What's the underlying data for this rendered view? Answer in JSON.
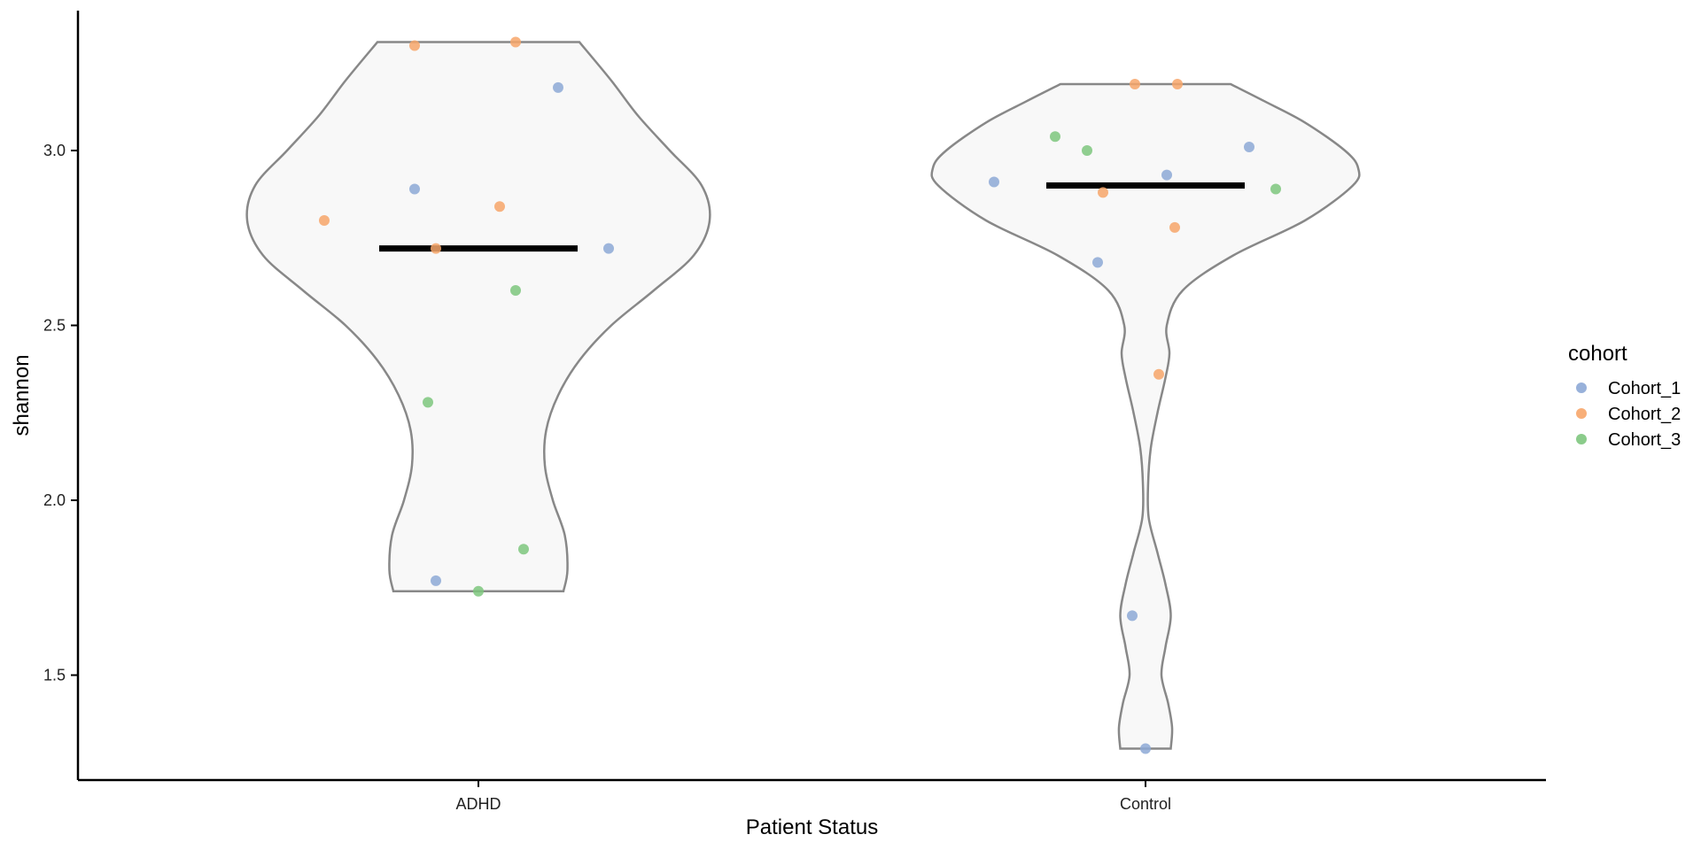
{
  "chart_data": {
    "type": "violin",
    "xlabel": "Patient Status",
    "ylabel": "shannon",
    "categories": [
      "ADHD",
      "Control"
    ],
    "ylim": [
      1.2,
      3.4
    ],
    "yticks": [
      1.5,
      2.0,
      2.5,
      3.0
    ],
    "ytick_labels": [
      "1.5",
      "2.0",
      "2.5",
      "3.0"
    ],
    "grid": false,
    "legend": {
      "title": "cohort",
      "placement": "right",
      "entries": [
        {
          "name": "Cohort_1",
          "color": "#8da9d6"
        },
        {
          "name": "Cohort_2",
          "color": "#f7a66a"
        },
        {
          "name": "Cohort_3",
          "color": "#7ec77e"
        }
      ]
    },
    "violin_fill": "#f8f8f8",
    "violin_stroke": "#888888",
    "median_color": "#000000",
    "groups": [
      {
        "category": "ADHD",
        "median": 2.72,
        "range": [
          1.74,
          3.31
        ],
        "density": [
          [
            1.74,
            0.32
          ],
          [
            1.8,
            0.335
          ],
          [
            1.9,
            0.325
          ],
          [
            2.0,
            0.28
          ],
          [
            2.1,
            0.25
          ],
          [
            2.2,
            0.255
          ],
          [
            2.3,
            0.3
          ],
          [
            2.4,
            0.38
          ],
          [
            2.5,
            0.5
          ],
          [
            2.6,
            0.66
          ],
          [
            2.7,
            0.81
          ],
          [
            2.8,
            0.87
          ],
          [
            2.9,
            0.84
          ],
          [
            3.0,
            0.72
          ],
          [
            3.1,
            0.6
          ],
          [
            3.2,
            0.5
          ],
          [
            3.31,
            0.38
          ]
        ],
        "points": [
          {
            "x": -0.58,
            "y": 2.8,
            "cohort": "Cohort_2"
          },
          {
            "x": -0.24,
            "y": 3.3,
            "cohort": "Cohort_2"
          },
          {
            "x": -0.24,
            "y": 2.89,
            "cohort": "Cohort_1"
          },
          {
            "x": -0.16,
            "y": 2.72,
            "cohort": "Cohort_2"
          },
          {
            "x": -0.19,
            "y": 2.28,
            "cohort": "Cohort_3"
          },
          {
            "x": -0.16,
            "y": 1.77,
            "cohort": "Cohort_1"
          },
          {
            "x": 0.0,
            "y": 1.74,
            "cohort": "Cohort_3"
          },
          {
            "x": 0.08,
            "y": 2.84,
            "cohort": "Cohort_2"
          },
          {
            "x": 0.14,
            "y": 3.31,
            "cohort": "Cohort_2"
          },
          {
            "x": 0.14,
            "y": 2.6,
            "cohort": "Cohort_3"
          },
          {
            "x": 0.17,
            "y": 1.86,
            "cohort": "Cohort_3"
          },
          {
            "x": 0.3,
            "y": 3.18,
            "cohort": "Cohort_1"
          },
          {
            "x": 0.49,
            "y": 2.72,
            "cohort": "Cohort_1"
          }
        ]
      },
      {
        "category": "Control",
        "median": 2.9,
        "range": [
          1.29,
          3.19
        ],
        "density": [
          [
            1.29,
            0.095
          ],
          [
            1.35,
            0.1
          ],
          [
            1.42,
            0.085
          ],
          [
            1.5,
            0.06
          ],
          [
            1.58,
            0.075
          ],
          [
            1.67,
            0.095
          ],
          [
            1.76,
            0.075
          ],
          [
            1.85,
            0.045
          ],
          [
            1.95,
            0.012
          ],
          [
            2.05,
            0.01
          ],
          [
            2.15,
            0.02
          ],
          [
            2.25,
            0.045
          ],
          [
            2.35,
            0.075
          ],
          [
            2.42,
            0.09
          ],
          [
            2.5,
            0.08
          ],
          [
            2.6,
            0.14
          ],
          [
            2.7,
            0.33
          ],
          [
            2.8,
            0.6
          ],
          [
            2.9,
            0.78
          ],
          [
            2.95,
            0.8
          ],
          [
            3.0,
            0.75
          ],
          [
            3.08,
            0.6
          ],
          [
            3.14,
            0.45
          ],
          [
            3.19,
            0.32
          ]
        ],
        "points": [
          {
            "x": -0.57,
            "y": 2.91,
            "cohort": "Cohort_1"
          },
          {
            "x": -0.34,
            "y": 3.04,
            "cohort": "Cohort_3"
          },
          {
            "x": -0.22,
            "y": 3.0,
            "cohort": "Cohort_3"
          },
          {
            "x": -0.16,
            "y": 2.88,
            "cohort": "Cohort_2"
          },
          {
            "x": -0.18,
            "y": 2.68,
            "cohort": "Cohort_1"
          },
          {
            "x": -0.04,
            "y": 3.19,
            "cohort": "Cohort_2"
          },
          {
            "x": -0.05,
            "y": 1.67,
            "cohort": "Cohort_1"
          },
          {
            "x": 0.0,
            "y": 1.29,
            "cohort": "Cohort_1"
          },
          {
            "x": 0.05,
            "y": 2.36,
            "cohort": "Cohort_2"
          },
          {
            "x": 0.08,
            "y": 2.93,
            "cohort": "Cohort_1"
          },
          {
            "x": 0.11,
            "y": 2.78,
            "cohort": "Cohort_2"
          },
          {
            "x": 0.12,
            "y": 3.19,
            "cohort": "Cohort_2"
          },
          {
            "x": 0.39,
            "y": 3.01,
            "cohort": "Cohort_1"
          },
          {
            "x": 0.49,
            "y": 2.89,
            "cohort": "Cohort_3"
          }
        ]
      }
    ]
  }
}
